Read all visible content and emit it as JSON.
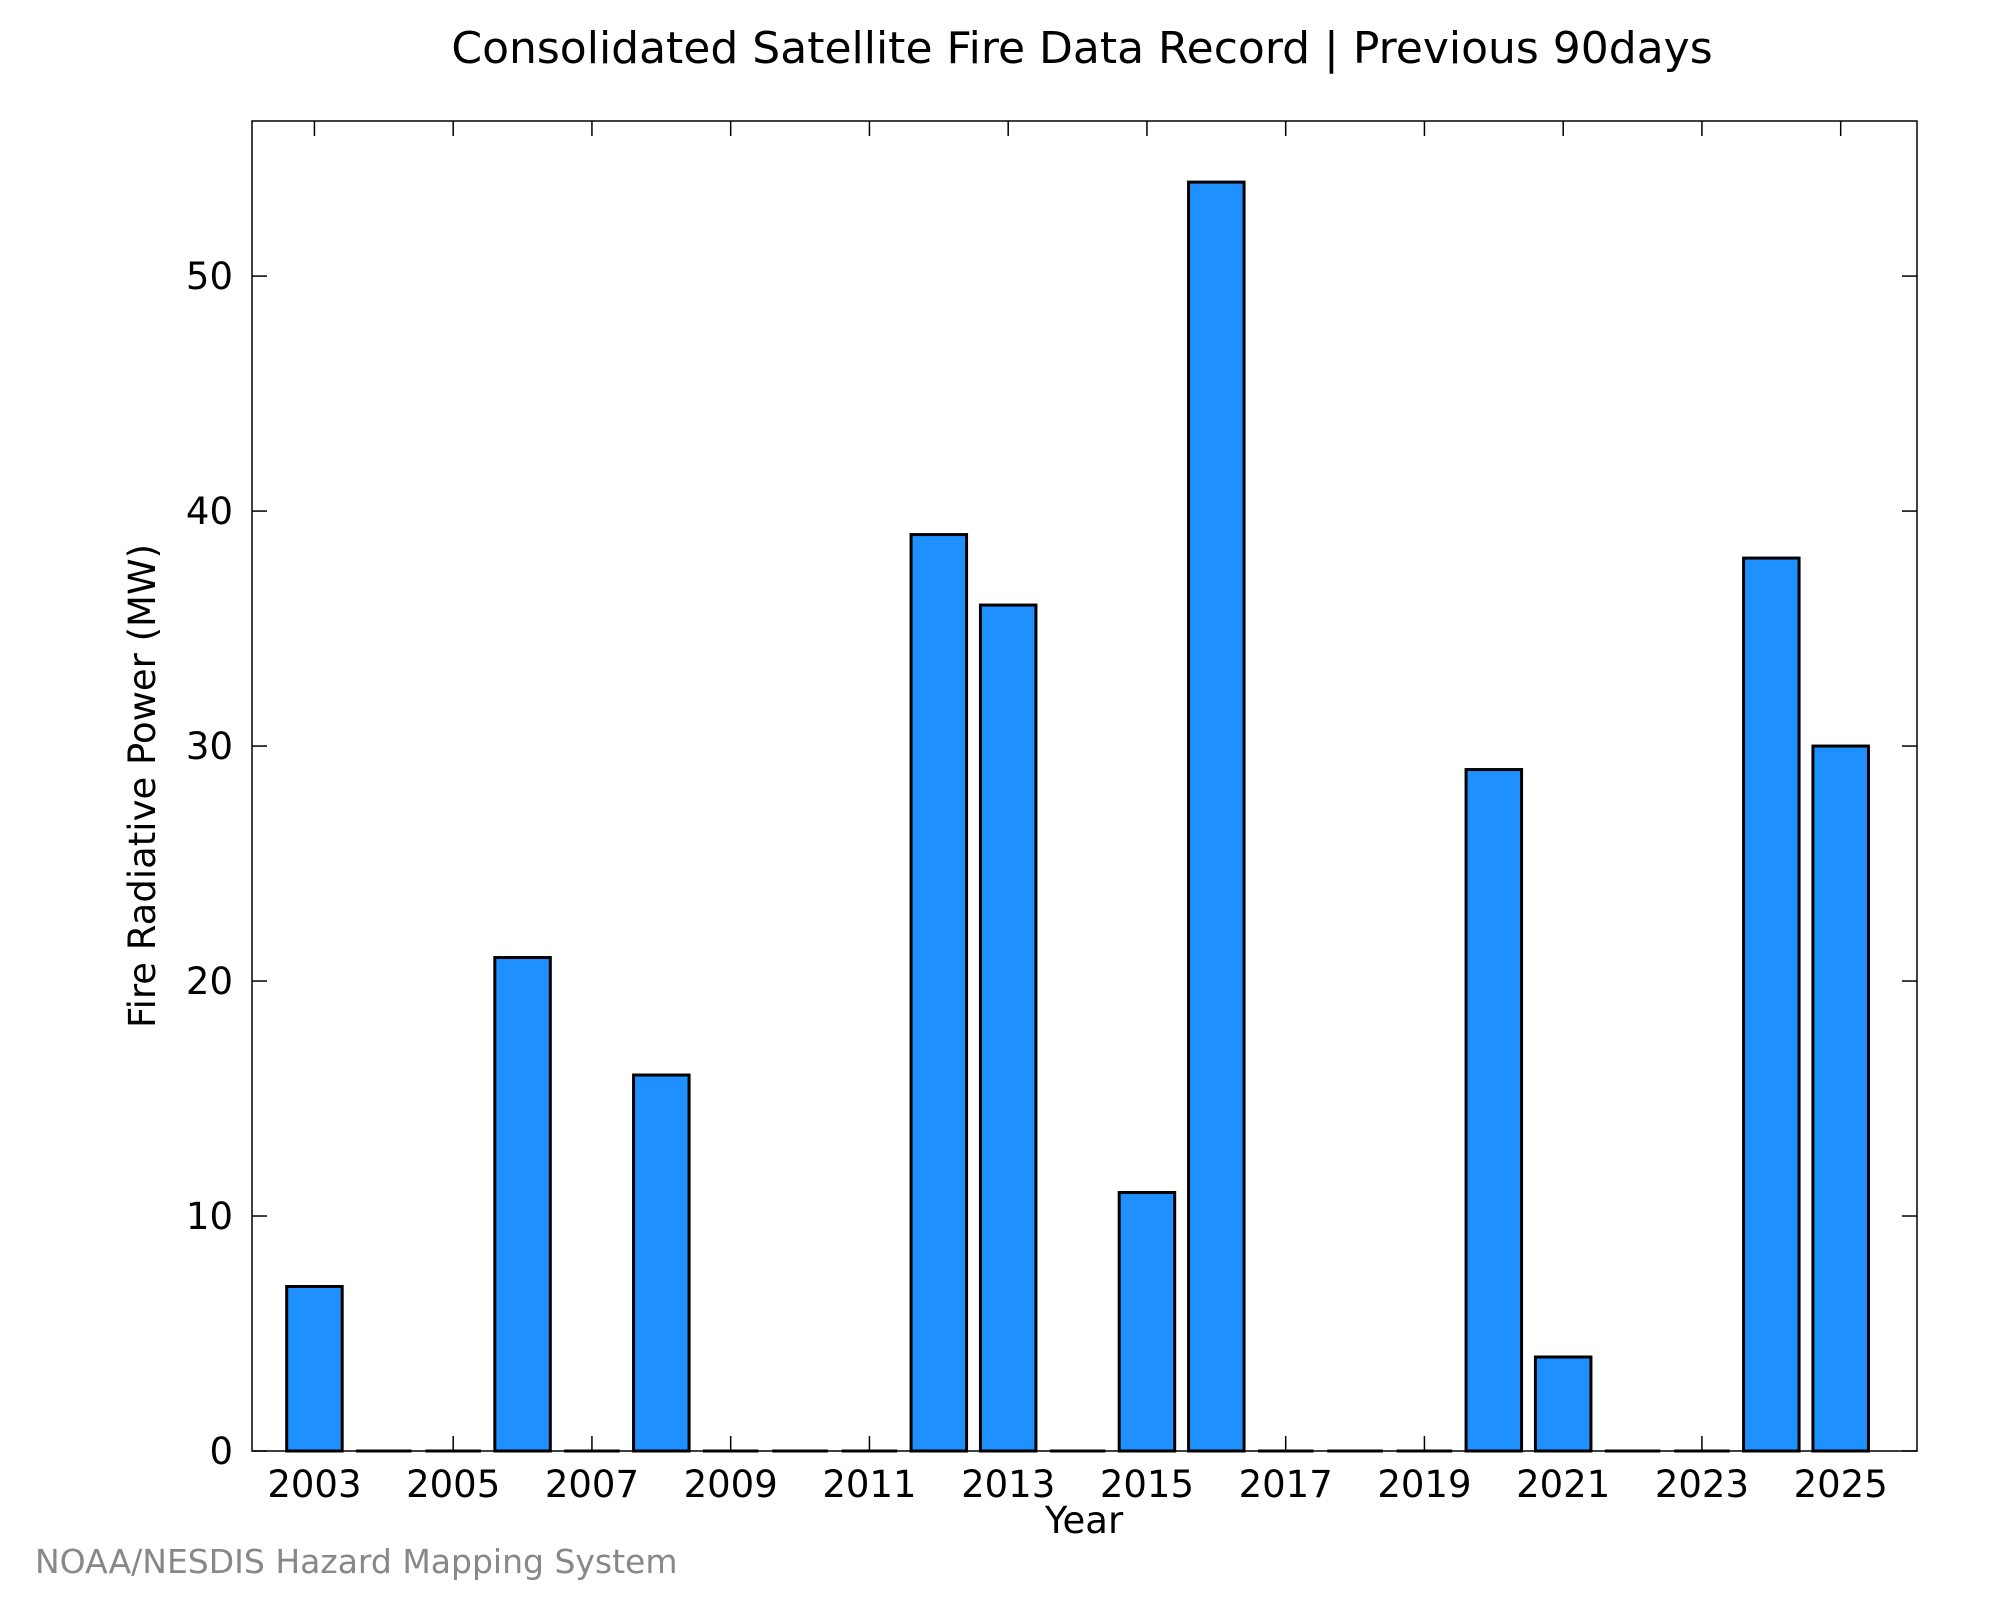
{
  "chart_data": {
    "type": "bar",
    "title": "Consolidated Satellite Fire Data Record | Previous 90days",
    "xlabel": "Year",
    "ylabel": "Fire Radiative Power (MW)",
    "categories": [
      "2003",
      "2004",
      "2005",
      "2006",
      "2007",
      "2008",
      "2009",
      "2010",
      "2011",
      "2012",
      "2013",
      "2014",
      "2015",
      "2016",
      "2017",
      "2018",
      "2019",
      "2020",
      "2021",
      "2022",
      "2023",
      "2024",
      "2025"
    ],
    "values": [
      7,
      0,
      0,
      21,
      0,
      16,
      0,
      0,
      0,
      39,
      36,
      0,
      11,
      54,
      0,
      0,
      0,
      29,
      4,
      0,
      0,
      38,
      30
    ],
    "xlim": [
      2002.1,
      2026.1
    ],
    "ylim": [
      0,
      56.6
    ],
    "x_ticks": [
      2003,
      2005,
      2007,
      2009,
      2011,
      2013,
      2015,
      2017,
      2019,
      2021,
      2023,
      2025
    ],
    "y_ticks": [
      0,
      10,
      20,
      30,
      40,
      50
    ],
    "grid": false,
    "bar_color": "#1E90FF",
    "edge_color": "#000000"
  },
  "footer": {
    "source": "NOAA/NESDIS Hazard Mapping System",
    "color": "#888888"
  }
}
